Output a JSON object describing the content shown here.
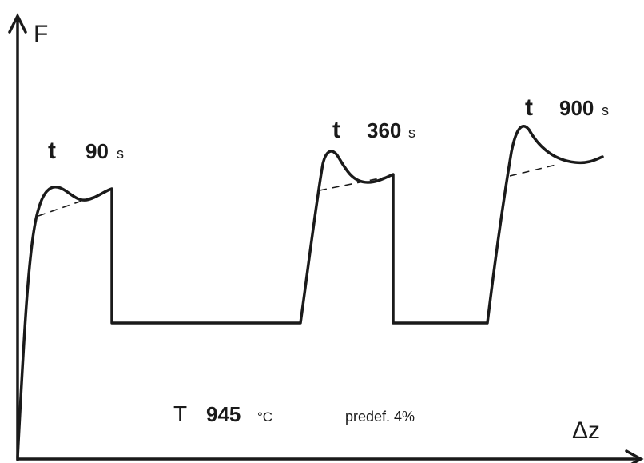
{
  "axes": {
    "y_label": "F",
    "x_label": "Δz"
  },
  "curves": [
    {
      "t_symbol": "t",
      "t_value": "90",
      "t_unit": "s"
    },
    {
      "t_symbol": "t",
      "t_value": "360",
      "t_unit": "s"
    },
    {
      "t_symbol": "t",
      "t_value": "900",
      "t_unit": "s"
    }
  ],
  "annotation": {
    "temperature_symbol": "T",
    "temperature_value": "945",
    "temperature_unit": "°C",
    "predeformation": "predef. 4%"
  },
  "colors": {
    "ink": "#1a1a1a",
    "background": "#ffffff"
  }
}
